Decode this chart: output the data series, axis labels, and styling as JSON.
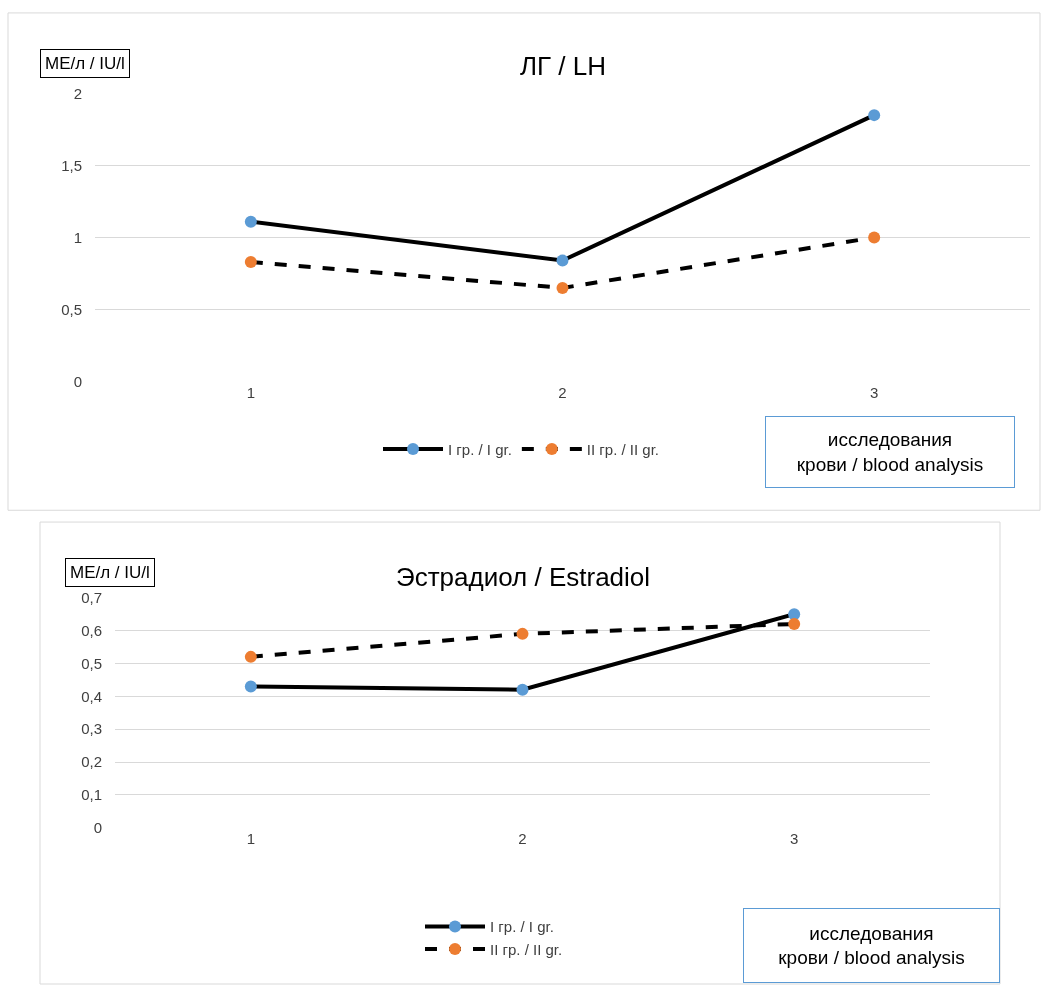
{
  "chart_data": [
    {
      "type": "line",
      "title": "ЛГ / LH",
      "ylabel": "МЕ/л / IU/l",
      "xlabel": "исследования крови / blood analysis",
      "categories": [
        "1",
        "2",
        "3"
      ],
      "series": [
        {
          "name": "I гр. / I gr.",
          "color": "#5b9bd5",
          "line_style": "solid",
          "values": [
            1.11,
            0.84,
            1.85
          ]
        },
        {
          "name": "II гр. / II gr.",
          "color": "#ed7d31",
          "line_style": "dashed",
          "values": [
            0.83,
            0.65,
            1.0
          ]
        }
      ],
      "ylim": [
        0,
        2
      ],
      "yticks": [
        0,
        {
          "value": 0.5,
          "label": "0,5"
        },
        1,
        {
          "value": 1.5,
          "label": "1,5"
        },
        2
      ],
      "grid": "y",
      "legend": "bottom",
      "marker": "circle"
    },
    {
      "type": "line",
      "title": "Эстрадиол / Estradiol",
      "ylabel": "МЕ/л / IU/l",
      "xlabel": "исследования крови / blood analysis",
      "categories": [
        "1",
        "2",
        "3"
      ],
      "series": [
        {
          "name": "I гр. / I gr.",
          "color": "#5b9bd5",
          "line_style": "solid",
          "values": [
            0.43,
            0.42,
            0.65
          ]
        },
        {
          "name": "II гр. / II gr.",
          "color": "#ed7d31",
          "line_style": "dashed",
          "values": [
            0.52,
            0.59,
            0.62
          ]
        }
      ],
      "ylim": [
        0,
        0.7
      ],
      "yticks": [
        0,
        {
          "value": 0.1,
          "label": "0,1"
        },
        {
          "value": 0.2,
          "label": "0,2"
        },
        {
          "value": 0.3,
          "label": "0,3"
        },
        {
          "value": 0.4,
          "label": "0,4"
        },
        {
          "value": 0.5,
          "label": "0,5"
        },
        {
          "value": 0.6,
          "label": "0,6"
        },
        {
          "value": 0.7,
          "label": "0,7"
        }
      ],
      "grid": "y",
      "legend": "bottom",
      "marker": "circle"
    }
  ]
}
